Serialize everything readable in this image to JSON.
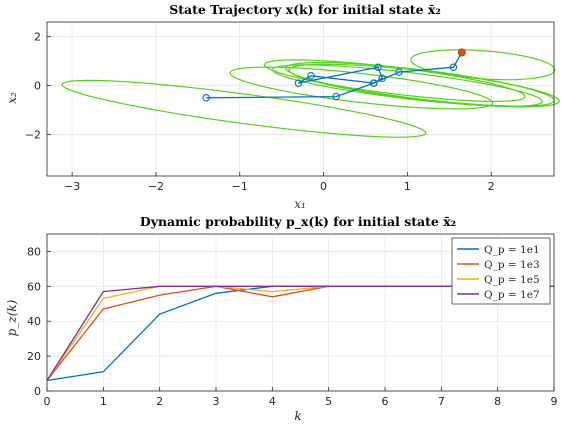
{
  "chart_data": [
    {
      "type": "line",
      "title": "State Trajectory x(k) for initial state x̄₂",
      "xlabel": "x₁",
      "ylabel": "x₂",
      "xlim": [
        -3.3,
        2.75
      ],
      "ylim": [
        -3.7,
        2.6
      ],
      "xticks": [
        -3,
        -2,
        -1,
        0,
        1,
        2
      ],
      "yticks": [
        -2,
        0,
        2
      ],
      "grid": true,
      "trajectory": {
        "color": "#0072bd",
        "x": [
          1.65,
          1.55,
          0.9,
          0.6,
          -0.15,
          -0.3,
          0.65,
          0.7,
          0.6,
          0.15,
          -1.4
        ],
        "y": [
          1.35,
          0.75,
          0.55,
          0.1,
          0.4,
          0.1,
          0.75,
          0.3,
          0.1,
          -0.45,
          -0.5
        ]
      },
      "final_state": {
        "x": 1.65,
        "y": 1.35,
        "color": "#d95319"
      },
      "ellipse_color": "#55d11c",
      "ellipses": [
        {
          "cx": -0.95,
          "cy": -0.95,
          "a": 2.4,
          "b": 0.55,
          "angle_deg": -26
        },
        {
          "cx": 0.45,
          "cy": -0.1,
          "a": 1.7,
          "b": 0.55,
          "angle_deg": -24
        },
        {
          "cx": 0.85,
          "cy": 0.2,
          "a": 1.7,
          "b": 0.5,
          "angle_deg": -25
        },
        {
          "cx": 1.0,
          "cy": 0.0,
          "a": 1.75,
          "b": 0.5,
          "angle_deg": -24
        },
        {
          "cx": 1.15,
          "cy": 0.05,
          "a": 1.75,
          "b": 0.55,
          "angle_deg": -25
        },
        {
          "cx": 1.2,
          "cy": 0.0,
          "a": 1.75,
          "b": 0.55,
          "angle_deg": -24
        },
        {
          "cx": 1.9,
          "cy": 0.85,
          "a": 0.9,
          "b": 0.55,
          "angle_deg": -22
        }
      ]
    },
    {
      "type": "line",
      "title": "Dynamic probability p_x(k) for initial state x̄₂",
      "xlabel": "k",
      "ylabel": "p_z(k)",
      "xlim": [
        0,
        9
      ],
      "ylim": [
        0,
        90
      ],
      "xticks": [
        0,
        1,
        2,
        3,
        4,
        5,
        6,
        7,
        8,
        9
      ],
      "yticks": [
        0,
        20,
        40,
        60,
        80
      ],
      "grid": true,
      "legend_position": "top-right",
      "x": [
        0,
        1,
        2,
        3,
        4,
        5,
        6,
        7,
        8,
        9
      ],
      "series": [
        {
          "name": "Q_p = 1e1",
          "color": "#0072bd",
          "values": [
            6,
            11,
            44,
            56,
            60,
            60,
            60,
            60,
            60,
            60
          ]
        },
        {
          "name": "Q_p = 1e3",
          "color": "#d95319",
          "values": [
            6,
            47,
            55,
            60,
            54,
            60,
            60,
            60,
            60,
            60
          ]
        },
        {
          "name": "Q_p = 1e5",
          "color": "#edb120",
          "values": [
            6,
            53,
            60,
            60,
            57,
            60,
            60,
            60,
            60,
            60
          ]
        },
        {
          "name": "Q_p = 1e7",
          "color": "#7e2f8e",
          "values": [
            6,
            57,
            60,
            60,
            60,
            60,
            60,
            60,
            60,
            60
          ]
        }
      ]
    }
  ]
}
